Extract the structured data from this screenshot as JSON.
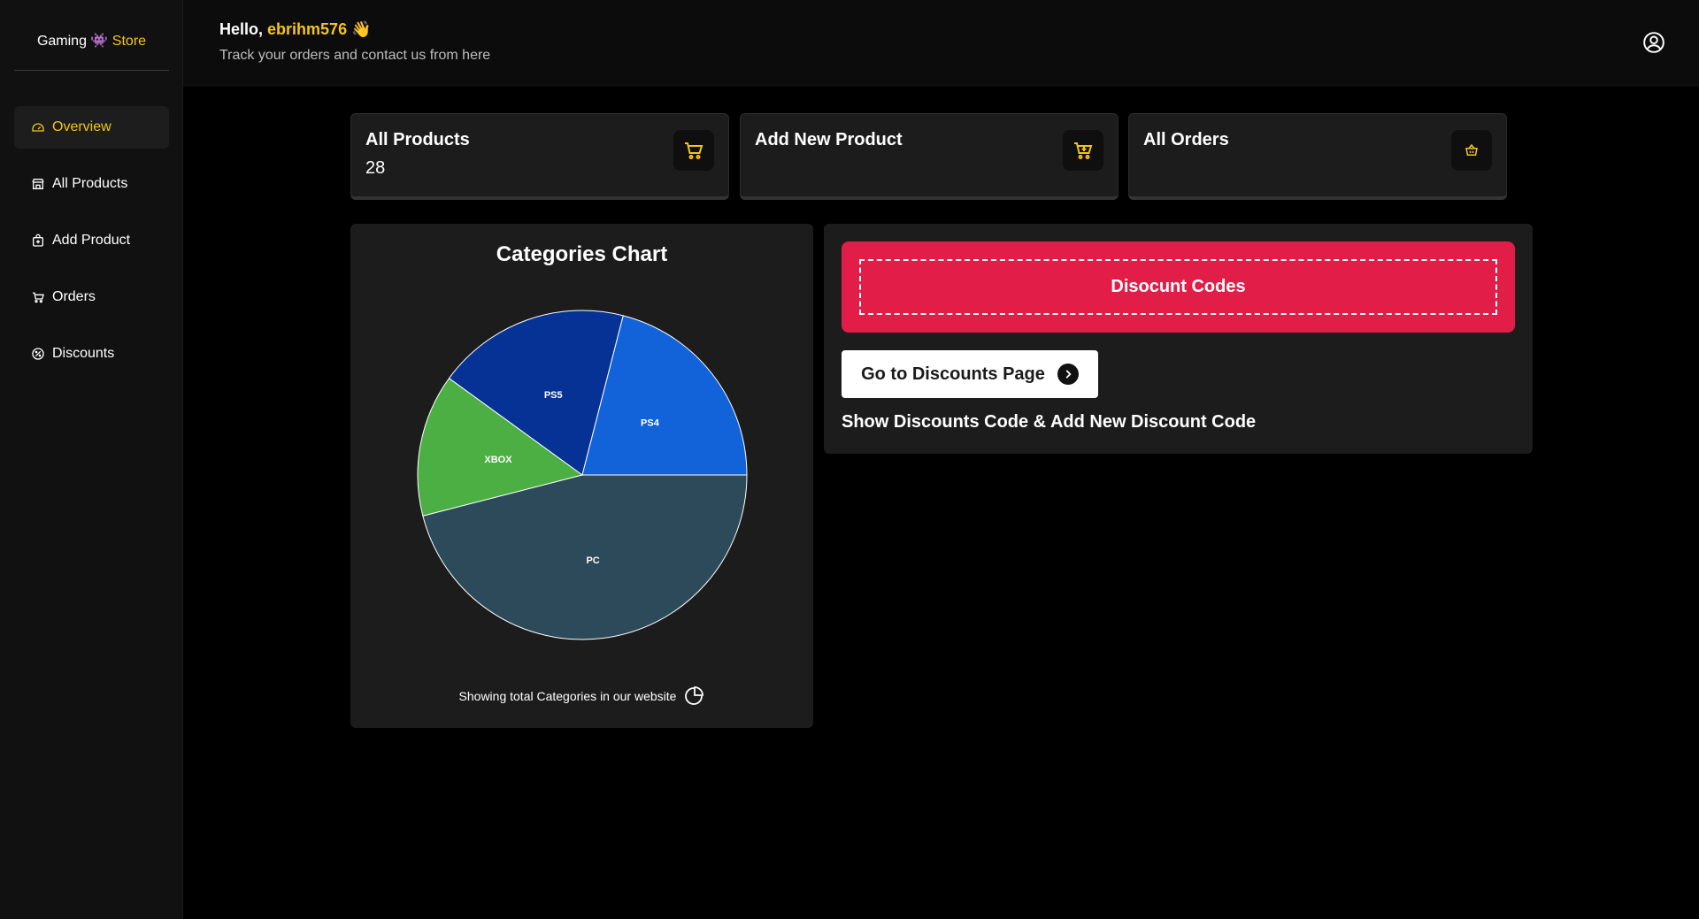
{
  "brand": {
    "name_part1": "Gaming",
    "robot_emoji": "👾",
    "name_part2": "Store",
    "accent_color": "#f5c518"
  },
  "sidebar": {
    "items": [
      {
        "label": "Overview",
        "icon": "dashboard-icon",
        "active": true
      },
      {
        "label": "All Products",
        "icon": "store-icon",
        "active": false
      },
      {
        "label": "Add Product",
        "icon": "add-bag-icon",
        "active": false
      },
      {
        "label": "Orders",
        "icon": "cart-icon",
        "active": false
      },
      {
        "label": "Discounts",
        "icon": "discount-icon",
        "active": false
      }
    ]
  },
  "header": {
    "greeting_prefix": "Hello,",
    "username": "ebrihm576",
    "wave_emoji": "👋",
    "subtitle": "Track your orders and contact us from here",
    "profile_icon": "user-circle-icon"
  },
  "cards": [
    {
      "title": "All Products",
      "count": "28",
      "icon": "cart-icon"
    },
    {
      "title": "Add New Product",
      "count": "",
      "icon": "cart-plus-icon"
    },
    {
      "title": "All Orders",
      "count": "",
      "icon": "basket-icon"
    }
  ],
  "chart_panel": {
    "title": "Categories Chart",
    "footer": "Showing total Categories in our website",
    "footer_icon": "pie-chart-icon"
  },
  "chart_data": {
    "type": "pie",
    "title": "Categories Chart",
    "categories": [
      "PC",
      "XBOX",
      "PS5",
      "PS4"
    ],
    "values": [
      46,
      14,
      19,
      21
    ],
    "colors": [
      "#2c4a5a",
      "#4caf43",
      "#053294",
      "#1262d9"
    ]
  },
  "discount": {
    "banner_label": "Disocunt Codes",
    "banner_color": "#e11d48",
    "button_label": "Go to Discounts Page",
    "description": "Show Discounts Code & Add New Discount Code"
  }
}
